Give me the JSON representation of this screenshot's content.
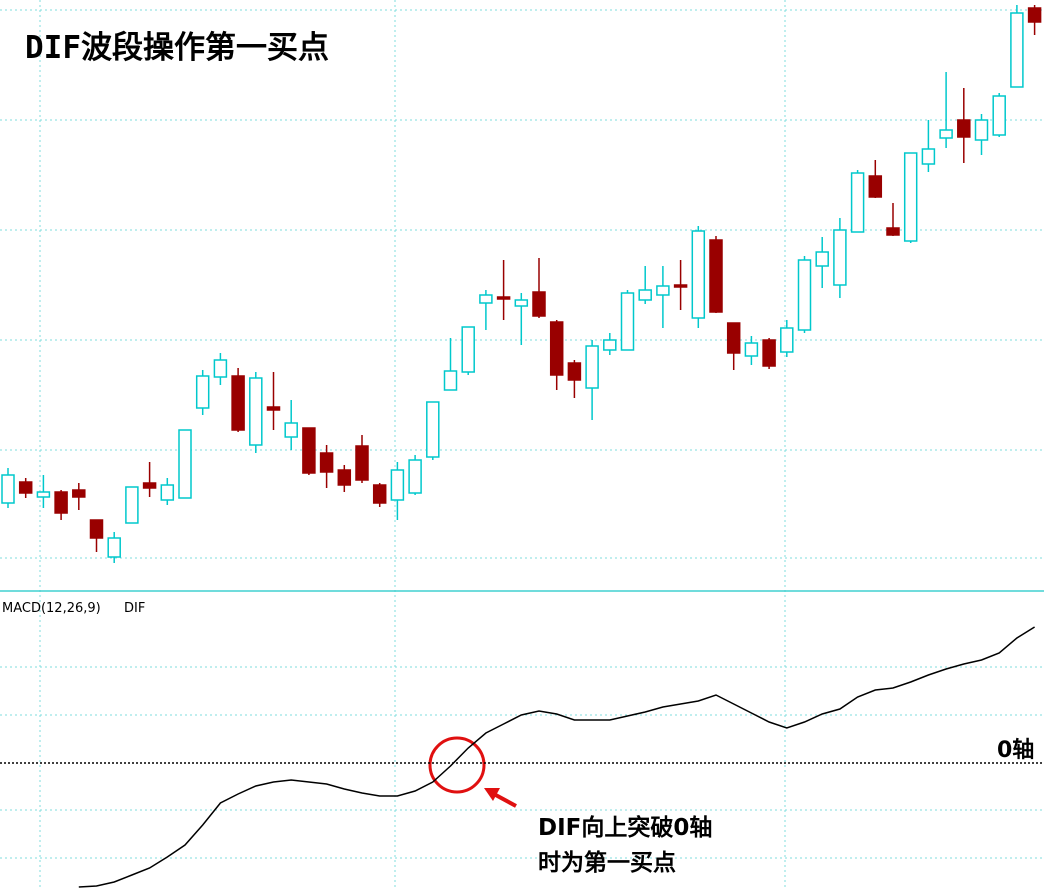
{
  "chart_data": [
    {
      "type": "candlestick",
      "title": "DIF波段操作第一买点",
      "categories": [
        null,
        null,
        null,
        null,
        null,
        null,
        null,
        null,
        null,
        null,
        null,
        null,
        null,
        null,
        null,
        null,
        null,
        null,
        null,
        null,
        null,
        null,
        null,
        null,
        null,
        null,
        null,
        null,
        null,
        null,
        null,
        null,
        null,
        null,
        null,
        null,
        null,
        null,
        null,
        null,
        null,
        null,
        null,
        null,
        null,
        null,
        null,
        null,
        null,
        null,
        null,
        null,
        null,
        null,
        null,
        null,
        null,
        null,
        null
      ],
      "open": [
        8.7,
        10.8,
        9.3,
        9.8,
        10.0,
        7.0,
        3.3,
        6.7,
        10.7,
        9.0,
        9.2,
        18.2,
        21.3,
        21.4,
        14.5,
        18.3,
        15.3,
        16.2,
        13.7,
        12.0,
        14.4,
        10.5,
        9.0,
        9.7,
        13.3,
        20.0,
        21.8,
        28.7,
        29.3,
        28.4,
        29.8,
        26.8,
        22.7,
        20.2,
        24.0,
        24.0,
        29.0,
        29.5,
        30.5,
        27.2,
        35.0,
        26.7,
        23.4,
        25.0,
        23.8,
        26.0,
        32.4,
        30.5,
        35.8,
        41.4,
        36.2,
        34.9,
        42.6,
        45.2,
        47.0,
        45.0,
        45.5,
        50.3,
        58.2
      ],
      "high": [
        12.2,
        11.2,
        11.5,
        10.0,
        10.7,
        7.0,
        5.8,
        10.3,
        12.8,
        11.2,
        16.0,
        22.0,
        23.7,
        22.2,
        21.8,
        21.8,
        19.0,
        16.2,
        14.5,
        12.5,
        15.5,
        10.7,
        12.8,
        13.5,
        18.8,
        25.2,
        26.3,
        30.0,
        33.0,
        29.7,
        33.2,
        27.0,
        23.0,
        25.0,
        25.7,
        30.0,
        32.4,
        32.4,
        33.0,
        36.4,
        35.4,
        26.7,
        25.4,
        25.2,
        27.0,
        33.4,
        35.3,
        37.2,
        42.0,
        43.0,
        38.7,
        43.7,
        47.0,
        51.8,
        50.2,
        47.6,
        49.7,
        58.5,
        58.5
      ],
      "low": [
        8.2,
        9.2,
        8.2,
        7.0,
        8.0,
        3.8,
        2.7,
        6.7,
        9.3,
        8.5,
        9.2,
        17.5,
        20.5,
        15.8,
        13.7,
        16.0,
        14.0,
        11.5,
        10.2,
        9.8,
        10.7,
        8.3,
        7.0,
        9.5,
        13.0,
        20.0,
        21.5,
        26.0,
        27.0,
        24.5,
        27.2,
        20.0,
        19.2,
        17.0,
        23.5,
        24.0,
        28.6,
        26.2,
        28.0,
        26.2,
        27.7,
        22.0,
        22.5,
        22.1,
        23.3,
        25.7,
        30.2,
        29.2,
        35.8,
        39.2,
        35.4,
        34.7,
        41.8,
        44.2,
        42.7,
        43.5,
        45.3,
        50.3,
        55.5
      ],
      "close": [
        11.5,
        9.7,
        9.8,
        7.7,
        9.3,
        5.2,
        5.2,
        10.3,
        10.2,
        10.5,
        16.0,
        21.4,
        23.0,
        16.0,
        21.2,
        18.0,
        16.7,
        11.7,
        11.8,
        10.5,
        11.0,
        8.7,
        12.0,
        13.0,
        18.8,
        21.9,
        26.3,
        29.5,
        29.1,
        29.0,
        27.4,
        21.5,
        21.0,
        24.4,
        25.0,
        29.7,
        30.0,
        30.4,
        30.3,
        35.9,
        27.8,
        23.7,
        24.7,
        22.4,
        26.2,
        33.0,
        33.8,
        36.0,
        41.7,
        39.3,
        35.5,
        43.7,
        44.1,
        46.0,
        45.3,
        47.0,
        49.4,
        57.7,
        56.8
      ],
      "up_color": "#00c8cc",
      "down_color": "#990000",
      "ylim": [
        0,
        59
      ]
    },
    {
      "type": "line",
      "title": "MACD(12,26,9)",
      "categories": [
        null,
        null,
        null,
        null,
        null,
        null,
        null,
        null,
        null,
        null,
        null,
        null,
        null,
        null,
        null,
        null,
        null,
        null,
        null,
        null,
        null,
        null,
        null,
        null,
        null,
        null,
        null,
        null,
        null,
        null,
        null,
        null,
        null,
        null,
        null,
        null,
        null,
        null,
        null,
        null,
        null,
        null,
        null,
        null,
        null,
        null,
        null,
        null,
        null,
        null,
        null,
        null,
        null,
        null,
        null,
        null,
        null,
        null,
        null
      ],
      "series": [
        {
          "name": "DIF",
          "color": "#000000",
          "values": [
            null,
            null,
            null,
            null,
            -12.4,
            -12.3,
            -11.9,
            -11.2,
            -10.5,
            -9.4,
            -8.2,
            -6.2,
            -4.0,
            -3.1,
            -2.3,
            -1.9,
            -1.7,
            -1.9,
            -2.1,
            -2.6,
            -3.0,
            -3.3,
            -3.3,
            -2.8,
            -1.9,
            -0.3,
            1.5,
            3.0,
            3.9,
            4.8,
            5.2,
            4.9,
            4.3,
            4.3,
            4.3,
            4.7,
            5.1,
            5.6,
            5.9,
            6.2,
            6.8,
            5.9,
            5.0,
            4.1,
            3.5,
            4.1,
            4.9,
            5.4,
            6.6,
            7.3,
            7.5,
            8.1,
            8.8,
            9.4,
            9.9,
            10.3,
            11.0,
            12.5,
            13.6
          ]
        }
      ],
      "ylim": [
        -12.7,
        17.3
      ],
      "reference_line": {
        "value": 0,
        "label": "0轴"
      },
      "annotation": [
        "DIF向上突破0轴",
        "时为第一买点"
      ]
    }
  ]
}
